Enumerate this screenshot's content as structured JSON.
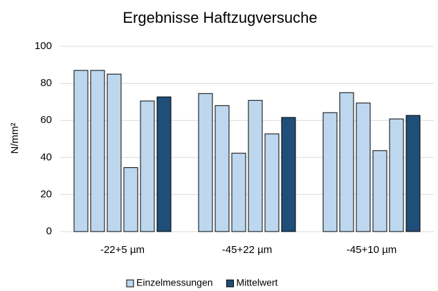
{
  "chart_data": {
    "type": "grouped_bar",
    "title": "Ergebnisse Haftzugversuche",
    "y_label": "N/mm²",
    "categories": [
      "-22+5 µm",
      "-45+22 µm",
      "-45+10 µm"
    ],
    "series": [
      {
        "name": "Einzelmessungen",
        "color": "#bdd7ee",
        "values": [
          [
            87,
            87,
            85,
            34.5,
            70.5
          ],
          [
            74.5,
            68,
            42.3,
            70.8,
            52.7
          ],
          [
            64.2,
            75,
            69.4,
            43.7,
            60.8
          ]
        ]
      },
      {
        "name": "Mittelwert",
        "color": "#1f4e79",
        "values": [
          72.7,
          61.6,
          62.7
        ]
      }
    ],
    "ylim": [
      0,
      100
    ],
    "yticks": [
      0,
      20,
      40,
      60,
      80,
      100
    ],
    "grid": true,
    "legend": "bottom"
  }
}
